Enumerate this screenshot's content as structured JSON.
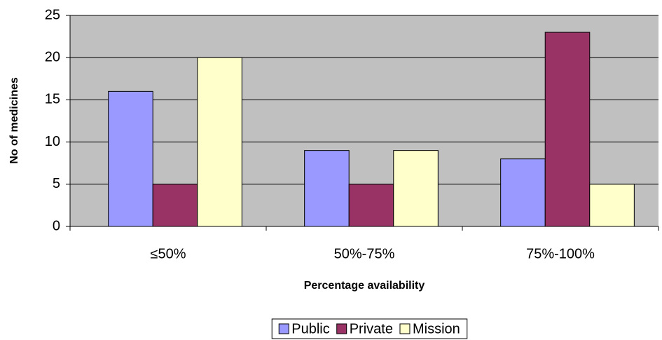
{
  "chart_data": {
    "type": "bar",
    "xlabel": "Percentage availability",
    "ylabel": "No of medicines",
    "categories": [
      "≤50%",
      "50%-75%",
      "75%-100%"
    ],
    "series": [
      {
        "name": "Public",
        "color": "#9999ff",
        "values": [
          16,
          9,
          8
        ]
      },
      {
        "name": "Private",
        "color": "#993366",
        "values": [
          5,
          5,
          23
        ]
      },
      {
        "name": "Mission",
        "color": "#ffffcc",
        "values": [
          20,
          9,
          5
        ]
      }
    ],
    "ylim": [
      0,
      25
    ],
    "yticks": [
      0,
      5,
      10,
      15,
      20,
      25
    ],
    "grid": true,
    "legend": "bottom"
  }
}
